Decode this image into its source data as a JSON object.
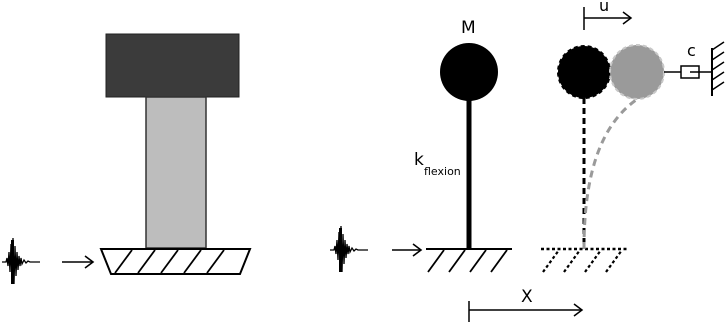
{
  "labels": {
    "mass": "M",
    "stiffness": "k",
    "stiffness_subscript": "flexion",
    "displacement": "u",
    "damper": "c",
    "ground_displacement": "X"
  },
  "colors": {
    "building_roof": "#3b3b3b",
    "building_column": "#bdbdbd",
    "mass_fill": "#000000",
    "displaced_mass_fill": "#9a9a9a",
    "displaced_mass_outline": "#c8c8c8",
    "line": "#000000",
    "dashed_line": "#9a9a9a"
  }
}
